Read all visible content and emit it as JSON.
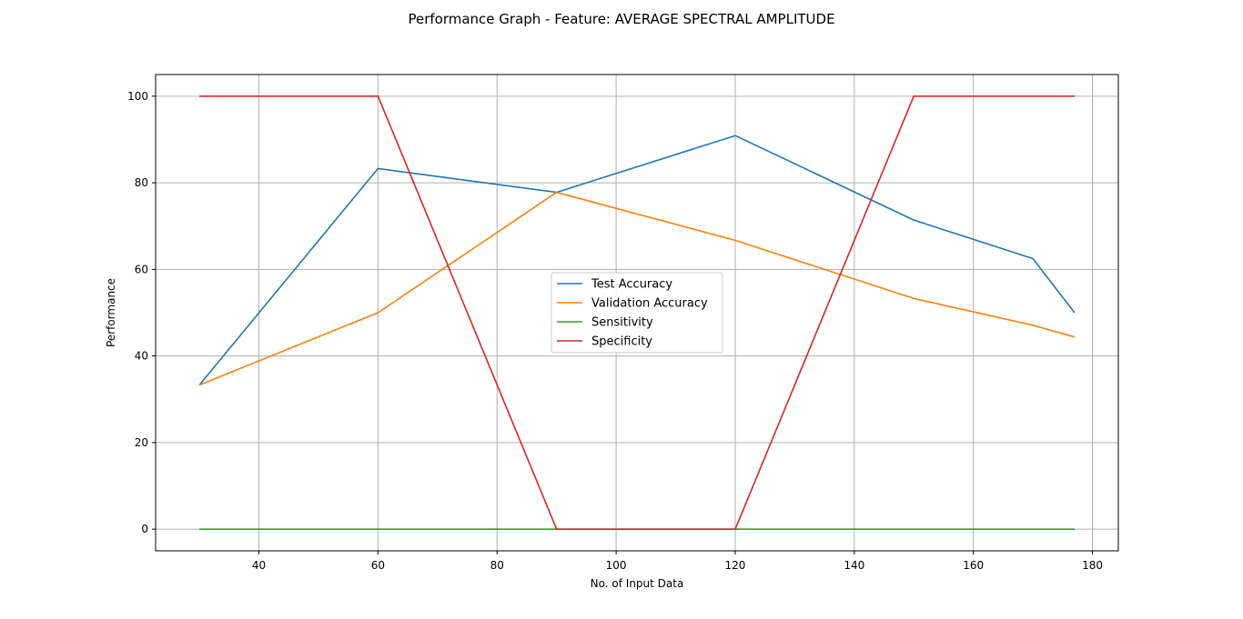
{
  "chart_data": {
    "type": "line",
    "title": "Performance Graph - Feature: AVERAGE SPECTRAL AMPLITUDE",
    "xlabel": "No. of Input Data",
    "ylabel": "Performance",
    "xlim": [
      22.65,
      184.35
    ],
    "ylim": [
      -5,
      105
    ],
    "xticks": [
      40,
      60,
      80,
      100,
      120,
      140,
      160,
      180
    ],
    "yticks": [
      0,
      20,
      40,
      60,
      80,
      100
    ],
    "grid": true,
    "legend_position": "center",
    "series": [
      {
        "name": "Test Accuracy",
        "color": "#1f77b4",
        "x": [
          30,
          60,
          90,
          120,
          150,
          170,
          177
        ],
        "y": [
          33.3,
          83.3,
          77.8,
          90.9,
          71.4,
          62.5,
          50.0
        ]
      },
      {
        "name": "Validation Accuracy",
        "color": "#ff7f0e",
        "x": [
          30,
          60,
          90,
          120,
          150,
          170,
          177
        ],
        "y": [
          33.3,
          50.0,
          77.8,
          66.7,
          53.3,
          47.1,
          44.4
        ]
      },
      {
        "name": "Sensitivity",
        "color": "#2ca02c",
        "x": [
          30,
          60,
          90,
          120,
          150,
          170,
          177
        ],
        "y": [
          0,
          0,
          0,
          0,
          0,
          0,
          0
        ]
      },
      {
        "name": "Specificity",
        "color": "#d62728",
        "x": [
          30,
          60,
          90,
          120,
          150,
          170,
          177
        ],
        "y": [
          100,
          100,
          0,
          0,
          100,
          100,
          100
        ]
      }
    ]
  }
}
